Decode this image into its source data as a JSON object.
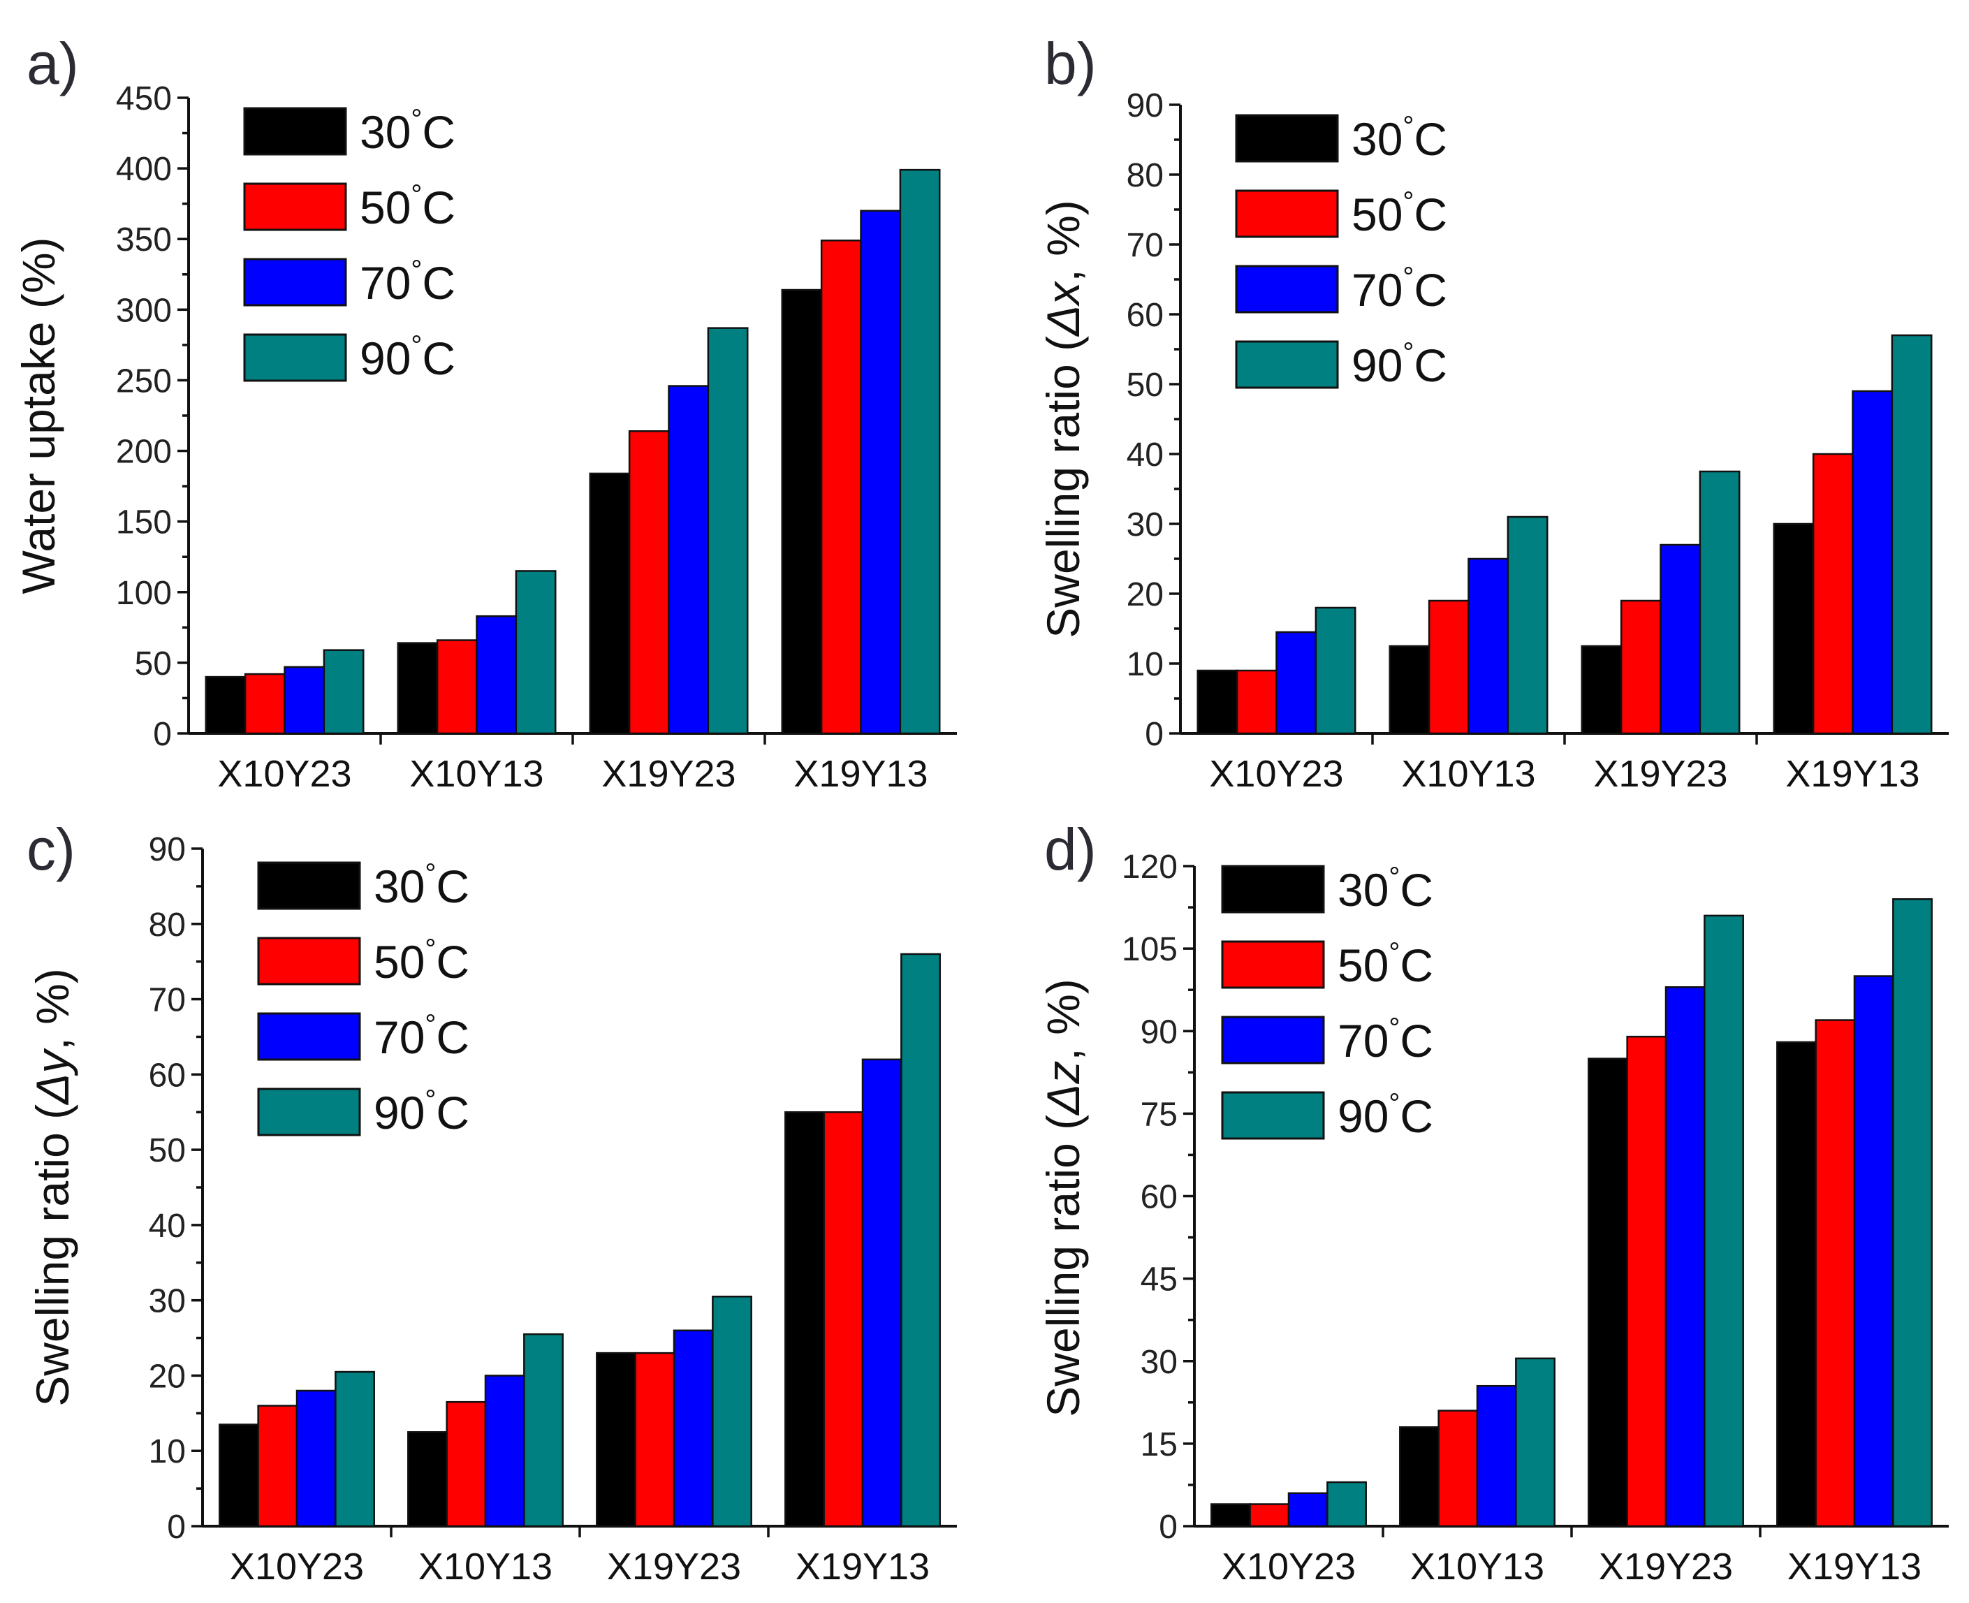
{
  "figure": {
    "series_names": [
      "30 °C",
      "50 °C",
      "70 °C",
      "90 °C"
    ],
    "series_colors": [
      "#000000",
      "#ff0000",
      "#0000ff",
      "#008080"
    ]
  },
  "chart_data": [
    {
      "panel": "a)",
      "type": "bar",
      "categories": [
        "X10Y23",
        "X10Y13",
        "X19Y23",
        "X19Y13"
      ],
      "ylabel": "Water uptake (%)",
      "ylim": [
        0,
        450
      ],
      "yticks": [
        0,
        50,
        100,
        150,
        200,
        250,
        300,
        350,
        400,
        450
      ],
      "legend": {
        "placement": "top-left",
        "entries": [
          {
            "value": "30",
            "unit": "°C"
          },
          {
            "value": "50",
            "unit": "°C"
          },
          {
            "value": "70",
            "unit": "°C"
          },
          {
            "value": "90",
            "unit": "°C"
          }
        ]
      },
      "series": [
        {
          "name": "30 °C",
          "values": [
            40,
            64,
            184,
            314
          ]
        },
        {
          "name": "50 °C",
          "values": [
            42,
            66,
            214,
            349
          ]
        },
        {
          "name": "70 °C",
          "values": [
            47,
            83,
            246,
            370
          ]
        },
        {
          "name": "90 °C",
          "values": [
            59,
            115,
            287,
            399
          ]
        }
      ]
    },
    {
      "panel": "b)",
      "type": "bar",
      "categories": [
        "X10Y23",
        "X10Y13",
        "X19Y23",
        "X19Y13"
      ],
      "ylabel_prefix": "Swelling ratio (",
      "ylabel_var": "Δx",
      "ylabel_suffix": ", %)",
      "ylim": [
        0,
        90
      ],
      "yticks": [
        0,
        10,
        20,
        30,
        40,
        50,
        60,
        70,
        80,
        90
      ],
      "legend": {
        "placement": "top-left",
        "entries": [
          {
            "value": "30",
            "unit": "°C"
          },
          {
            "value": "50",
            "unit": "°C"
          },
          {
            "value": "70",
            "unit": "°C"
          },
          {
            "value": "90",
            "unit": "°C"
          }
        ]
      },
      "series": [
        {
          "name": "30 °C",
          "values": [
            9,
            12.5,
            12.5,
            30
          ]
        },
        {
          "name": "50 °C",
          "values": [
            9,
            19,
            19,
            40
          ]
        },
        {
          "name": "70 °C",
          "values": [
            14.5,
            25,
            27,
            49
          ]
        },
        {
          "name": "90 °C",
          "values": [
            18,
            31,
            37.5,
            57
          ]
        }
      ]
    },
    {
      "panel": "c)",
      "type": "bar",
      "categories": [
        "X10Y23",
        "X10Y13",
        "X19Y23",
        "X19Y13"
      ],
      "ylabel_prefix": "Swelling ratio (",
      "ylabel_var": "Δy",
      "ylabel_suffix": ", %)",
      "ylim": [
        0,
        90
      ],
      "yticks": [
        0,
        10,
        20,
        30,
        40,
        50,
        60,
        70,
        80,
        90
      ],
      "legend": {
        "placement": "top-left",
        "entries": [
          {
            "value": "30",
            "unit": "°C"
          },
          {
            "value": "50",
            "unit": "°C"
          },
          {
            "value": "70",
            "unit": "°C"
          },
          {
            "value": "90",
            "unit": "°C"
          }
        ]
      },
      "series": [
        {
          "name": "30 °C",
          "values": [
            13.5,
            12.5,
            23,
            55
          ]
        },
        {
          "name": "50 °C",
          "values": [
            16,
            16.5,
            23,
            55
          ]
        },
        {
          "name": "70 °C",
          "values": [
            18,
            20,
            26,
            62
          ]
        },
        {
          "name": "90 °C",
          "values": [
            20.5,
            25.5,
            30.5,
            76
          ]
        }
      ]
    },
    {
      "panel": "d)",
      "type": "bar",
      "categories": [
        "X10Y23",
        "X10Y13",
        "X19Y23",
        "X19Y13"
      ],
      "ylabel_prefix": "Swelling ratio (",
      "ylabel_var": "Δz",
      "ylabel_suffix": ", %)",
      "ylim": [
        0,
        120
      ],
      "yticks": [
        0,
        15,
        30,
        45,
        60,
        75,
        90,
        105,
        120
      ],
      "legend": {
        "placement": "top-left",
        "entries": [
          {
            "value": "30",
            "unit": "°C"
          },
          {
            "value": "50",
            "unit": "°C"
          },
          {
            "value": "70",
            "unit": "°C"
          },
          {
            "value": "90",
            "unit": "°C"
          }
        ]
      },
      "series": [
        {
          "name": "30 °C",
          "values": [
            4,
            18,
            85,
            88
          ]
        },
        {
          "name": "50 °C",
          "values": [
            4,
            21,
            89,
            92
          ]
        },
        {
          "name": "70 °C",
          "values": [
            6,
            25.5,
            98,
            100
          ]
        },
        {
          "name": "90 °C",
          "values": [
            8,
            30.5,
            111,
            114
          ]
        }
      ]
    }
  ]
}
